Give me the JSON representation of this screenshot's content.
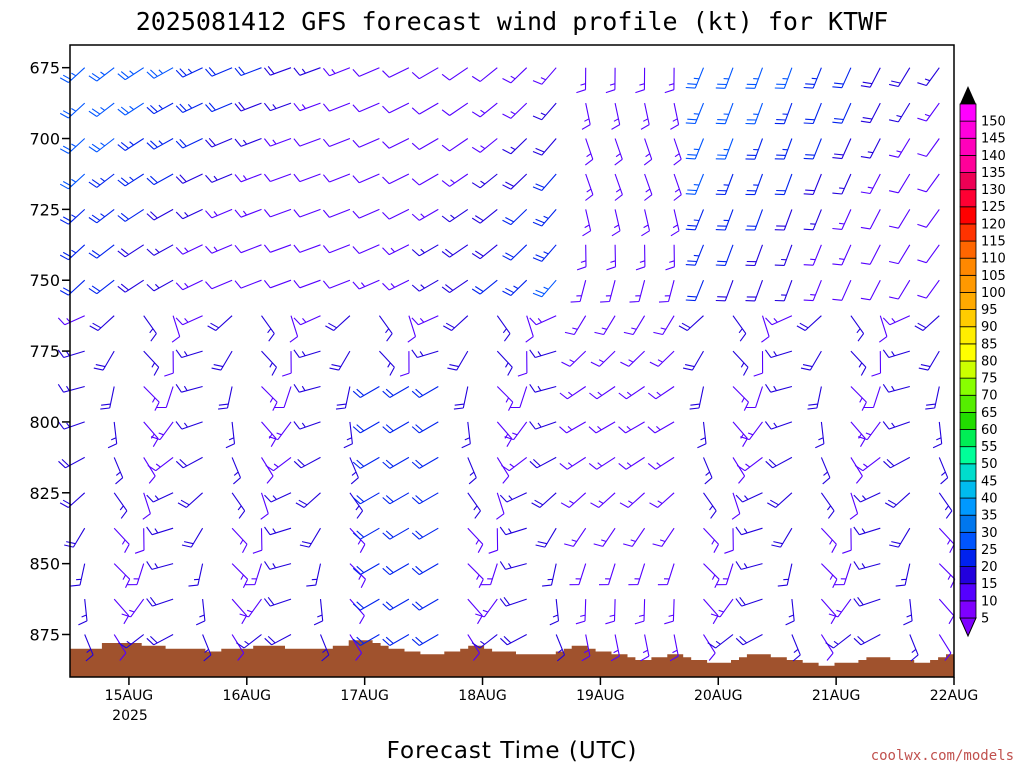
{
  "chart_data": {
    "type": "wind-barb-profile",
    "title": "2025081412 GFS forecast wind profile (kt) for KTWF",
    "xlabel": "Forecast Time (UTC)",
    "credit": "coolwx.com/models",
    "y_axis": {
      "quantity": "pressure",
      "unit": "hPa",
      "inverted": true,
      "range": [
        890,
        667
      ],
      "ticks": [
        675,
        700,
        725,
        750,
        775,
        800,
        825,
        850,
        875
      ],
      "tick_labels": [
        "675",
        "700",
        "725",
        "750",
        "775",
        "800",
        "825",
        "850",
        "875"
      ]
    },
    "x_axis": {
      "quantity": "forecast valid time",
      "range": [
        "2025-08-14T12:00Z",
        "2025-08-22T00:00Z"
      ],
      "ticks": [
        "2025-08-15T00:00Z",
        "2025-08-16T00:00Z",
        "2025-08-17T00:00Z",
        "2025-08-18T00:00Z",
        "2025-08-19T00:00Z",
        "2025-08-20T00:00Z",
        "2025-08-21T00:00Z",
        "2025-08-22T00:00Z"
      ],
      "tick_labels": [
        "15AUG",
        "16AUG",
        "17AUG",
        "18AUG",
        "19AUG",
        "20AUG",
        "21AUG",
        "22AUG"
      ],
      "year_label": "2025"
    },
    "colorbar": {
      "unit": "kt",
      "levels": [
        5,
        10,
        15,
        20,
        25,
        30,
        35,
        40,
        45,
        50,
        55,
        60,
        65,
        70,
        75,
        80,
        85,
        90,
        95,
        100,
        105,
        110,
        115,
        120,
        125,
        130,
        135,
        140,
        145,
        150
      ],
      "colors": [
        "#7f00ff",
        "#5500ff",
        "#2200dd",
        "#0022ee",
        "#0055ff",
        "#0077ee",
        "#0099ff",
        "#00bbee",
        "#00ddcc",
        "#00ff99",
        "#00ee55",
        "#22dd00",
        "#55ee00",
        "#88ff00",
        "#ccff00",
        "#ffff00",
        "#ffee00",
        "#ffcc00",
        "#ffaa00",
        "#ff9900",
        "#ff8800",
        "#ff6600",
        "#ff3300",
        "#ff0000",
        "#ff0033",
        "#ee0055",
        "#ff0099",
        "#ff00bb",
        "#ff00dd",
        "#ff00ff"
      ]
    },
    "terrain": {
      "color": "#a0522d",
      "surface_pressure": [
        880,
        880,
        880,
        880,
        878,
        878,
        878,
        878,
        878,
        879,
        879,
        879,
        880,
        880,
        880,
        880,
        880,
        881,
        881,
        880,
        880,
        880,
        880,
        879,
        879,
        879,
        879,
        880,
        880,
        880,
        880,
        880,
        880,
        879,
        879,
        877,
        877,
        877,
        878,
        879,
        880,
        880,
        881,
        881,
        882,
        882,
        882,
        881,
        881,
        880,
        879,
        879,
        880,
        881,
        881,
        881,
        882,
        882,
        882,
        882,
        882,
        881,
        880,
        879,
        879,
        880,
        881,
        881,
        882,
        882,
        883,
        884,
        884,
        883,
        883,
        882,
        882,
        883,
        884,
        884,
        885,
        885,
        885,
        884,
        883,
        882,
        882,
        882,
        883,
        883,
        884,
        884,
        885,
        885,
        886,
        886,
        885,
        885,
        885,
        884,
        883,
        883,
        883,
        884,
        884,
        884,
        885,
        885,
        884,
        883,
        882
      ]
    },
    "barbs": {
      "times_hours_from_start": [
        3,
        9,
        15,
        21,
        27,
        33,
        39,
        45,
        51,
        57,
        63,
        69,
        75,
        81,
        87,
        93,
        99,
        105,
        111,
        117,
        123,
        129,
        135,
        141,
        147,
        153,
        159,
        165,
        171,
        177
      ],
      "levels_hpa": [
        675,
        687.5,
        700,
        712.5,
        725,
        737.5,
        750,
        762.5,
        775,
        787.5,
        800,
        812.5,
        825,
        837.5,
        850,
        862.5,
        875,
        887.5
      ],
      "note": "wind direction in degrees (from), speed in kt"
    }
  }
}
